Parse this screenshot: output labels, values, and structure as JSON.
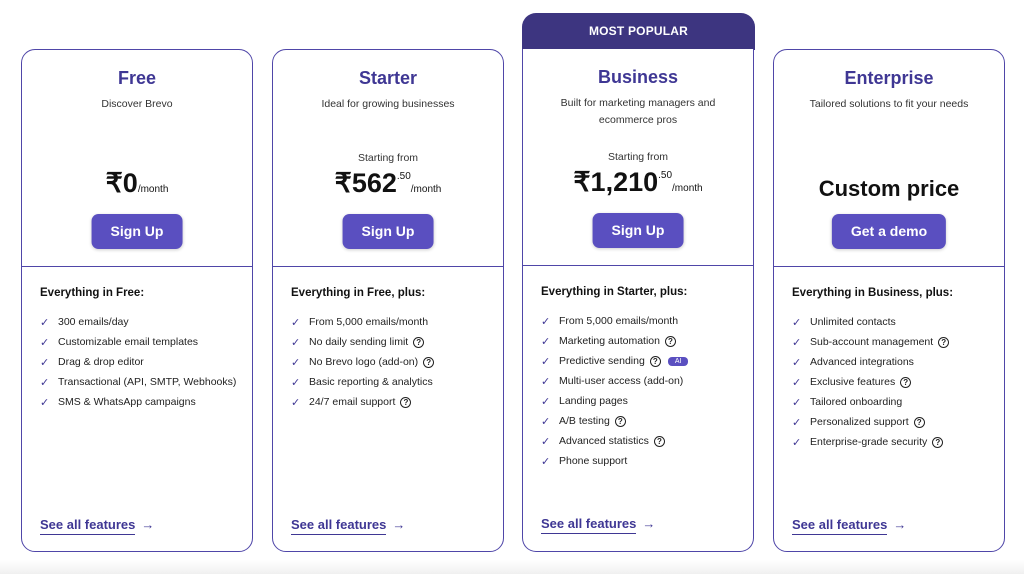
{
  "popular_label": "MOST POPULAR",
  "plans": [
    {
      "name": "Free",
      "subtitle": "Discover Brevo",
      "starting_from": "",
      "price": "₹0",
      "cents": "",
      "per": "/month",
      "button": "Sign Up",
      "features_heading": "Everything in Free:",
      "features": [
        {
          "text": "300 emails/day"
        },
        {
          "text": "Customizable email templates"
        },
        {
          "text": "Drag & drop editor"
        },
        {
          "text": "Transactional (API, SMTP, Webhooks)"
        },
        {
          "text": "SMS & WhatsApp campaigns"
        }
      ],
      "see_all": "See all features"
    },
    {
      "name": "Starter",
      "subtitle": "Ideal for growing businesses",
      "starting_from": "Starting from",
      "price": "₹562",
      "cents": ".50",
      "per": "/month",
      "button": "Sign Up",
      "features_heading": "Everything in Free, plus:",
      "features": [
        {
          "text": "From 5,000 emails/month"
        },
        {
          "text": "No daily sending limit",
          "help": true
        },
        {
          "text": "No Brevo logo (add-on)",
          "help": true
        },
        {
          "text": "Basic reporting & analytics"
        },
        {
          "text": "24/7 email support",
          "help": true
        }
      ],
      "see_all": "See all features"
    },
    {
      "name": "Business",
      "subtitle": "Built for marketing managers and ecommerce pros",
      "starting_from": "Starting from",
      "price": "₹1,210",
      "cents": ".50",
      "per": "/month",
      "button": "Sign Up",
      "features_heading": "Everything in Starter, plus:",
      "features": [
        {
          "text": "From 5,000 emails/month"
        },
        {
          "text": "Marketing automation",
          "help": true
        },
        {
          "text": "Predictive sending",
          "help": true,
          "badge": "AI"
        },
        {
          "text": "Multi-user access (add-on)"
        },
        {
          "text": "Landing pages"
        },
        {
          "text": "A/B testing",
          "help": true
        },
        {
          "text": "Advanced statistics",
          "help": true
        },
        {
          "text": "Phone support"
        }
      ],
      "see_all": "See all features"
    },
    {
      "name": "Enterprise",
      "subtitle": "Tailored solutions to fit your needs",
      "custom_price": "Custom price",
      "button": "Get a demo",
      "features_heading": "Everything in Business, plus:",
      "features": [
        {
          "text": "Unlimited contacts"
        },
        {
          "text": "Sub-account management",
          "help": true
        },
        {
          "text": "Advanced integrations"
        },
        {
          "text": "Exclusive features",
          "help": true
        },
        {
          "text": "Tailored onboarding"
        },
        {
          "text": "Personalized support",
          "help": true
        },
        {
          "text": "Enterprise-grade security",
          "help": true
        }
      ],
      "see_all": "See all features"
    }
  ],
  "icons": {
    "check": "✓",
    "help": "?",
    "arrow": "→"
  },
  "colors": {
    "accent": "#5a4fc0",
    "title": "#3f3794",
    "popular_bar": "#3d3580",
    "border": "#4f46a8"
  }
}
